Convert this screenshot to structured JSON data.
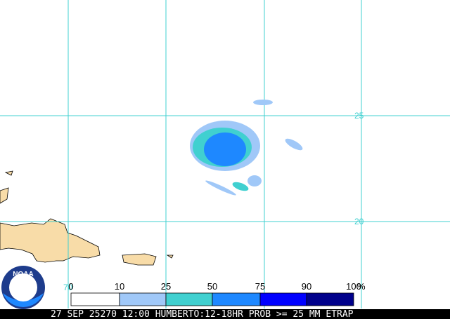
{
  "map": {
    "grid_labels": {
      "lat": [
        "25",
        "20"
      ],
      "lon": [
        "70"
      ]
    },
    "logo": "NOAA",
    "legend": {
      "ticks": [
        "0",
        "10",
        "25",
        "50",
        "75",
        "90",
        "100"
      ],
      "unit": "%",
      "colors": [
        "#ffffff",
        "#a0c8f8",
        "#40d0d0",
        "#1e88ff",
        "#0000ff",
        "#00008b"
      ]
    },
    "caption": "27 SEP 25270 12:00 HUMBERTO:12-18HR PROB >= 25 MM ETRAP"
  }
}
